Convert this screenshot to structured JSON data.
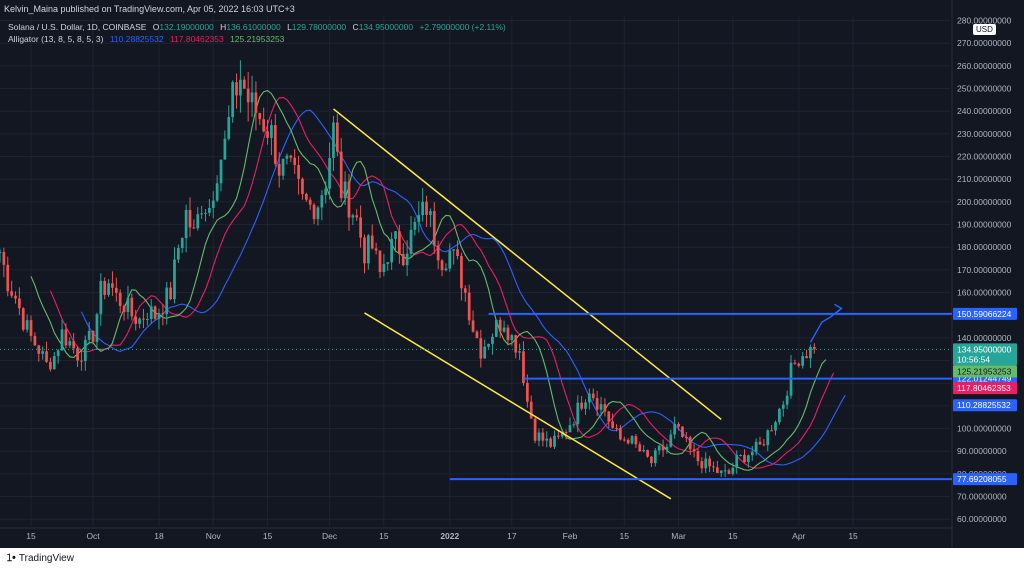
{
  "header": {
    "publisher_line": "Kelvin_Maina published on TradingView.com, Apr 05, 2022 16:03 UTC+3"
  },
  "legend": {
    "symbol": "Solana / U.S. Dollar, 1D, COINBASE",
    "o_label": "O",
    "o_value": "132.19000000",
    "h_label": "H",
    "h_value": "136.61000000",
    "l_label": "L",
    "l_value": "129.78000000",
    "c_label": "C",
    "c_value": "134.95000000",
    "change": "+2.79000000 (+2.11%)",
    "indicator": "Alligator (13, 8, 5, 8, 5, 3)",
    "jaw_value": "110.28825532",
    "teeth_value": "117.80462353",
    "lips_value": "125.21953253"
  },
  "colors": {
    "background": "#131722",
    "up": "#26a69a",
    "down": "#ef5350",
    "jaw": "#2962ff",
    "teeth": "#e91e63",
    "lips": "#66bb6a",
    "channel": "#ffeb3b",
    "level_line": "#2962ff",
    "text": "#d1d4dc"
  },
  "currency_label": "USD",
  "price_labels": {
    "current": "134.95000000",
    "countdown": "10:56:54",
    "lips": "125.21953253",
    "jaw": "110.28825532",
    "teeth": "117.80462353"
  },
  "horizontal_levels": [
    "150.59066224",
    "122.01244749",
    "77.69208055"
  ],
  "footer": {
    "brand": "TradingView"
  },
  "chart_data": {
    "type": "candlestick",
    "title": "Solana / U.S. Dollar, 1D, COINBASE",
    "y_range": [
      57,
      282
    ],
    "y_axis_scale": "linear",
    "grid": true,
    "y_ticks": [
      "60.00000000",
      "70.00000000",
      "80.00000000",
      "90.00000000",
      "100.00000000",
      "110.00000000",
      "120.00000000",
      "130.00000000",
      "140.00000000",
      "150.00000000",
      "160.00000000",
      "170.00000000",
      "180.00000000",
      "190.00000000",
      "200.00000000",
      "210.00000000",
      "220.00000000",
      "230.00000000",
      "240.00000000",
      "250.00000000",
      "260.00000000",
      "270.00000000",
      "280.00000000"
    ],
    "x_ticks": [
      {
        "label": "15",
        "date": "2021-09-15"
      },
      {
        "label": "Oct",
        "date": "2021-10-01"
      },
      {
        "label": "18",
        "date": "2021-10-18"
      },
      {
        "label": "Nov",
        "date": "2021-11-01"
      },
      {
        "label": "15",
        "date": "2021-11-15"
      },
      {
        "label": "Dec",
        "date": "2021-12-01"
      },
      {
        "label": "15",
        "date": "2021-12-15"
      },
      {
        "label": "2022",
        "date": "2022-01-01"
      },
      {
        "label": "17",
        "date": "2022-01-17"
      },
      {
        "label": "Feb",
        "date": "2022-02-01"
      },
      {
        "label": "15",
        "date": "2022-02-15"
      },
      {
        "label": "Mar",
        "date": "2022-03-01"
      },
      {
        "label": "15",
        "date": "2022-03-15"
      },
      {
        "label": "Apr",
        "date": "2022-04-01"
      },
      {
        "label": "15",
        "date": "2022-04-15"
      }
    ],
    "date_range": [
      "2021-09-07",
      "2022-05-10"
    ],
    "closes": [
      {
        "date": "2021-09-07",
        "close": 178
      },
      {
        "date": "2021-09-09",
        "close": 165
      },
      {
        "date": "2021-09-11",
        "close": 158
      },
      {
        "date": "2021-09-13",
        "close": 148
      },
      {
        "date": "2021-09-15",
        "close": 140
      },
      {
        "date": "2021-09-17",
        "close": 135
      },
      {
        "date": "2021-09-19",
        "close": 128
      },
      {
        "date": "2021-09-21",
        "close": 132
      },
      {
        "date": "2021-09-23",
        "close": 142
      },
      {
        "date": "2021-09-25",
        "close": 138
      },
      {
        "date": "2021-09-27",
        "close": 133
      },
      {
        "date": "2021-09-29",
        "close": 135
      },
      {
        "date": "2021-10-01",
        "close": 142
      },
      {
        "date": "2021-10-03",
        "close": 160
      },
      {
        "date": "2021-10-05",
        "close": 165
      },
      {
        "date": "2021-10-07",
        "close": 158
      },
      {
        "date": "2021-10-09",
        "close": 155
      },
      {
        "date": "2021-10-11",
        "close": 150
      },
      {
        "date": "2021-10-13",
        "close": 148
      },
      {
        "date": "2021-10-15",
        "close": 152
      },
      {
        "date": "2021-10-17",
        "close": 150
      },
      {
        "date": "2021-10-19",
        "close": 155
      },
      {
        "date": "2021-10-21",
        "close": 160
      },
      {
        "date": "2021-10-23",
        "close": 180
      },
      {
        "date": "2021-10-25",
        "close": 195
      },
      {
        "date": "2021-10-27",
        "close": 185
      },
      {
        "date": "2021-10-29",
        "close": 200
      },
      {
        "date": "2021-10-31",
        "close": 198
      },
      {
        "date": "2021-11-02",
        "close": 215
      },
      {
        "date": "2021-11-04",
        "close": 225
      },
      {
        "date": "2021-11-06",
        "close": 245
      },
      {
        "date": "2021-11-08",
        "close": 255
      },
      {
        "date": "2021-11-10",
        "close": 245
      },
      {
        "date": "2021-11-12",
        "close": 240
      },
      {
        "date": "2021-11-14",
        "close": 235
      },
      {
        "date": "2021-11-16",
        "close": 230
      },
      {
        "date": "2021-11-18",
        "close": 215
      },
      {
        "date": "2021-11-20",
        "close": 215
      },
      {
        "date": "2021-11-22",
        "close": 210
      },
      {
        "date": "2021-11-24",
        "close": 200
      },
      {
        "date": "2021-11-26",
        "close": 198
      },
      {
        "date": "2021-11-28",
        "close": 200
      },
      {
        "date": "2021-11-30",
        "close": 210
      },
      {
        "date": "2021-12-02",
        "close": 232
      },
      {
        "date": "2021-12-04",
        "close": 205
      },
      {
        "date": "2021-12-06",
        "close": 200
      },
      {
        "date": "2021-12-08",
        "close": 192
      },
      {
        "date": "2021-12-10",
        "close": 178
      },
      {
        "date": "2021-12-12",
        "close": 180
      },
      {
        "date": "2021-12-14",
        "close": 168
      },
      {
        "date": "2021-12-16",
        "close": 178
      },
      {
        "date": "2021-12-18",
        "close": 182
      },
      {
        "date": "2021-12-20",
        "close": 178
      },
      {
        "date": "2021-12-22",
        "close": 185
      },
      {
        "date": "2021-12-24",
        "close": 192
      },
      {
        "date": "2021-12-26",
        "close": 198
      },
      {
        "date": "2021-12-28",
        "close": 185
      },
      {
        "date": "2021-12-30",
        "close": 175
      },
      {
        "date": "2022-01-01",
        "close": 178
      },
      {
        "date": "2022-01-03",
        "close": 172
      },
      {
        "date": "2022-01-05",
        "close": 160
      },
      {
        "date": "2022-01-07",
        "close": 145
      },
      {
        "date": "2022-01-09",
        "close": 135
      },
      {
        "date": "2022-01-11",
        "close": 140
      },
      {
        "date": "2022-01-13",
        "close": 145
      },
      {
        "date": "2022-01-15",
        "close": 148
      },
      {
        "date": "2022-01-17",
        "close": 140
      },
      {
        "date": "2022-01-19",
        "close": 135
      },
      {
        "date": "2022-01-21",
        "close": 112
      },
      {
        "date": "2022-01-23",
        "close": 98
      },
      {
        "date": "2022-01-25",
        "close": 95
      },
      {
        "date": "2022-01-27",
        "close": 93
      },
      {
        "date": "2022-01-29",
        "close": 95
      },
      {
        "date": "2022-01-31",
        "close": 100
      },
      {
        "date": "2022-02-02",
        "close": 105
      },
      {
        "date": "2022-02-04",
        "close": 112
      },
      {
        "date": "2022-02-06",
        "close": 118
      },
      {
        "date": "2022-02-08",
        "close": 112
      },
      {
        "date": "2022-02-10",
        "close": 108
      },
      {
        "date": "2022-02-12",
        "close": 100
      },
      {
        "date": "2022-02-14",
        "close": 95
      },
      {
        "date": "2022-02-16",
        "close": 96
      },
      {
        "date": "2022-02-18",
        "close": 92
      },
      {
        "date": "2022-02-20",
        "close": 88
      },
      {
        "date": "2022-02-22",
        "close": 85
      },
      {
        "date": "2022-02-24",
        "close": 90
      },
      {
        "date": "2022-02-26",
        "close": 92
      },
      {
        "date": "2022-02-28",
        "close": 100
      },
      {
        "date": "2022-03-02",
        "close": 96
      },
      {
        "date": "2022-03-04",
        "close": 90
      },
      {
        "date": "2022-03-06",
        "close": 86
      },
      {
        "date": "2022-03-08",
        "close": 84
      },
      {
        "date": "2022-03-10",
        "close": 82
      },
      {
        "date": "2022-03-12",
        "close": 80
      },
      {
        "date": "2022-03-14",
        "close": 80
      },
      {
        "date": "2022-03-16",
        "close": 86
      },
      {
        "date": "2022-03-18",
        "close": 88
      },
      {
        "date": "2022-03-20",
        "close": 90
      },
      {
        "date": "2022-03-22",
        "close": 92
      },
      {
        "date": "2022-03-24",
        "close": 98
      },
      {
        "date": "2022-03-26",
        "close": 105
      },
      {
        "date": "2022-03-28",
        "close": 112
      },
      {
        "date": "2022-03-30",
        "close": 125
      },
      {
        "date": "2022-04-01",
        "close": 132
      },
      {
        "date": "2022-04-03",
        "close": 134
      },
      {
        "date": "2022-04-05",
        "close": 134.95
      }
    ],
    "alligator": {
      "jaw_last": 110.28825532,
      "teeth_last": 117.80462353,
      "lips_last": 125.21953253
    },
    "channel_upper": {
      "from": {
        "date": "2021-12-02",
        "price": 241
      },
      "to": {
        "date": "2022-03-12",
        "price": 104
      }
    },
    "channel_lower": {
      "from": {
        "date": "2021-12-10",
        "price": 151
      },
      "to": {
        "date": "2022-02-27",
        "price": 69
      }
    },
    "levels": [
      150.59066224,
      122.01244749,
      77.69208055
    ],
    "projection": [
      {
        "date": "2022-04-04",
        "price": 138
      },
      {
        "date": "2022-04-07",
        "price": 147
      },
      {
        "date": "2022-04-09",
        "price": 149
      },
      {
        "date": "2022-04-12",
        "price": 153
      }
    ]
  }
}
